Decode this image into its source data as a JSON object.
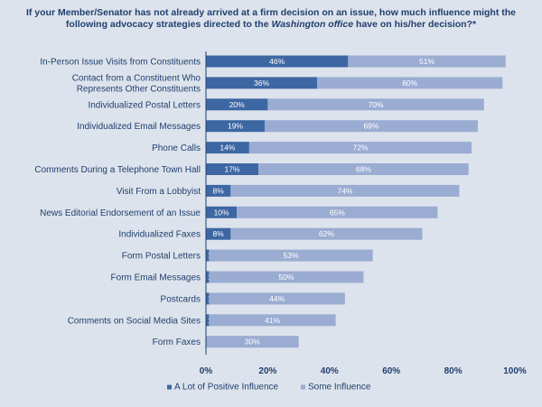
{
  "chart_data": {
    "type": "bar",
    "orientation": "horizontal",
    "stacked": true,
    "title_parts": {
      "before": "If your Member/Senator has not already arrived at a firm decision on an issue, how much influence might the following advocacy strategies directed to the ",
      "emphasis": "Washington office",
      "after": " have on his/her decision?*"
    },
    "categories": [
      "In-Person Issue Visits from Constituents",
      "Contact from a Constituent Who Represents Other Constituents",
      "Individualized Postal Letters",
      "Individualized Email Messages",
      "Phone Calls",
      "Comments During a Telephone Town Hall",
      "Visit From a Lobbyist",
      "News Editorial Endorsement of an Issue",
      "Individualized Faxes",
      "Form Postal Letters",
      "Form Email Messages",
      "Postcards",
      "Comments on Social Media Sites",
      "Form Faxes"
    ],
    "series": [
      {
        "name": "A Lot of Positive Influence",
        "color": "#3d67a3",
        "values": [
          46,
          36,
          20,
          19,
          14,
          17,
          8,
          10,
          8,
          1,
          1,
          1,
          1,
          0
        ],
        "labels": [
          "46%",
          "36%",
          "20%",
          "19%",
          "14%",
          "17%",
          "8%",
          "10%",
          "8%",
          "1%",
          "1%",
          "1%",
          "1%",
          "0%"
        ]
      },
      {
        "name": "Some Influence",
        "color": "#9bacd2",
        "values": [
          51,
          60,
          70,
          69,
          72,
          68,
          74,
          65,
          62,
          53,
          50,
          44,
          41,
          30
        ],
        "labels": [
          "51%",
          "60%",
          "70%",
          "69%",
          "72%",
          "68%",
          "74%",
          "65%",
          "62%",
          "53%",
          "50%",
          "44%",
          "41%",
          "30%"
        ]
      }
    ],
    "xlim": [
      0,
      100
    ],
    "xticks": [
      0,
      20,
      40,
      60,
      80,
      100
    ],
    "xtick_labels": [
      "0%",
      "20%",
      "40%",
      "60%",
      "80%",
      "100%"
    ],
    "legend_position": "bottom",
    "grid": false
  }
}
